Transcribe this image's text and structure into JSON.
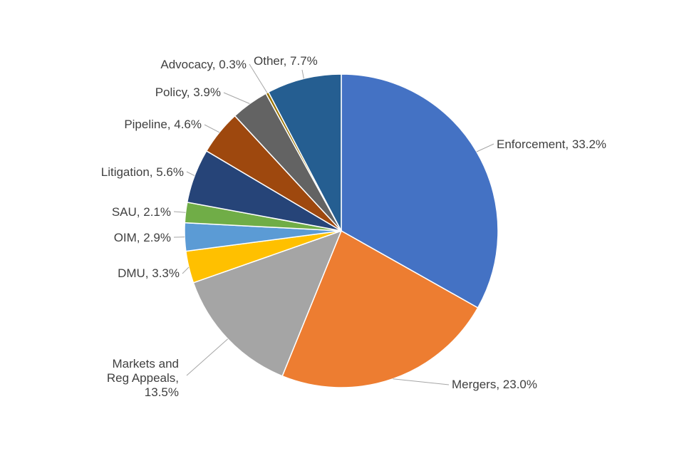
{
  "chart_data": {
    "type": "pie",
    "title": "",
    "start": "12 o'clock",
    "direction": "clockwise",
    "slices": [
      {
        "name": "Enforcement",
        "value": 33.2,
        "label": "Enforcement, 33.2%",
        "color": "#4472C4"
      },
      {
        "name": "Mergers",
        "value": 23.0,
        "label": "Mergers, 23.0%",
        "color": "#ED7D31"
      },
      {
        "name": "Markets and Reg Appeals",
        "value": 13.5,
        "label": [
          "Markets and",
          "Reg Appeals,",
          "13.5%"
        ],
        "color": "#A5A5A5"
      },
      {
        "name": "DMU",
        "value": 3.3,
        "label": "DMU, 3.3%",
        "color": "#FFC000"
      },
      {
        "name": "OIM",
        "value": 2.9,
        "label": "OIM, 2.9%",
        "color": "#5B9BD5"
      },
      {
        "name": "SAU",
        "value": 2.1,
        "label": "SAU, 2.1%",
        "color": "#70AD47"
      },
      {
        "name": "Litigation",
        "value": 5.6,
        "label": "Litigation, 5.6%",
        "color": "#264478"
      },
      {
        "name": "Pipeline",
        "value": 4.6,
        "label": "Pipeline, 4.6%",
        "color": "#9E480E"
      },
      {
        "name": "Policy",
        "value": 3.9,
        "label": "Policy, 3.9%",
        "color": "#636363"
      },
      {
        "name": "Advocacy",
        "value": 0.3,
        "label": "Advocacy, 0.3%",
        "color": "#997300"
      },
      {
        "name": "Other",
        "value": 7.7,
        "label": "Other, 7.7%",
        "color": "#255E91"
      }
    ]
  }
}
